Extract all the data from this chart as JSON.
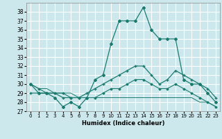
{
  "xlabel": "Humidex (Indice chaleur)",
  "bg_color": "#cce8ec",
  "line_color": "#1a7a6e",
  "grid_color": "#ffffff",
  "xlim": [
    -0.5,
    23.5
  ],
  "ylim": [
    27,
    39
  ],
  "yticks": [
    27,
    28,
    29,
    30,
    31,
    32,
    33,
    34,
    35,
    36,
    37,
    38
  ],
  "xticks": [
    0,
    1,
    2,
    3,
    4,
    5,
    6,
    7,
    8,
    9,
    10,
    11,
    12,
    13,
    14,
    15,
    16,
    17,
    18,
    19,
    20,
    21,
    22,
    23
  ],
  "series": [
    [
      30,
      29,
      29,
      28.5,
      27.5,
      28,
      27.5,
      28.5,
      30.5,
      31,
      34.5,
      37,
      37,
      37,
      38.5,
      36,
      35,
      35,
      35,
      30.5,
      30,
      30,
      29,
      28
    ],
    [
      29,
      29,
      29,
      29,
      28.5,
      28.5,
      28.5,
      29,
      29.5,
      30,
      30.5,
      31,
      31.5,
      32,
      32,
      31,
      30,
      30.5,
      31.5,
      31,
      30.5,
      30,
      29.5,
      28.5
    ],
    [
      30,
      29.5,
      29,
      29,
      29,
      28.5,
      28.5,
      28.5,
      28.5,
      29,
      29.5,
      29.5,
      30,
      30.5,
      30.5,
      30,
      29.5,
      29.5,
      30,
      29.5,
      29,
      28.5,
      28,
      27.5
    ],
    [
      30,
      29.5,
      29.5,
      29,
      29,
      29,
      28.5,
      28.5,
      28.5,
      28.5,
      28.5,
      28.5,
      28.5,
      28.5,
      28.5,
      28.5,
      28.5,
      28.5,
      28.5,
      28.5,
      28.5,
      28,
      28,
      27.5
    ]
  ],
  "markers": [
    "D",
    "+",
    "D",
    null
  ],
  "markersizes": [
    2.0,
    3.5,
    1.5,
    0
  ],
  "linewidths": [
    0.9,
    0.9,
    0.8,
    0.7
  ]
}
